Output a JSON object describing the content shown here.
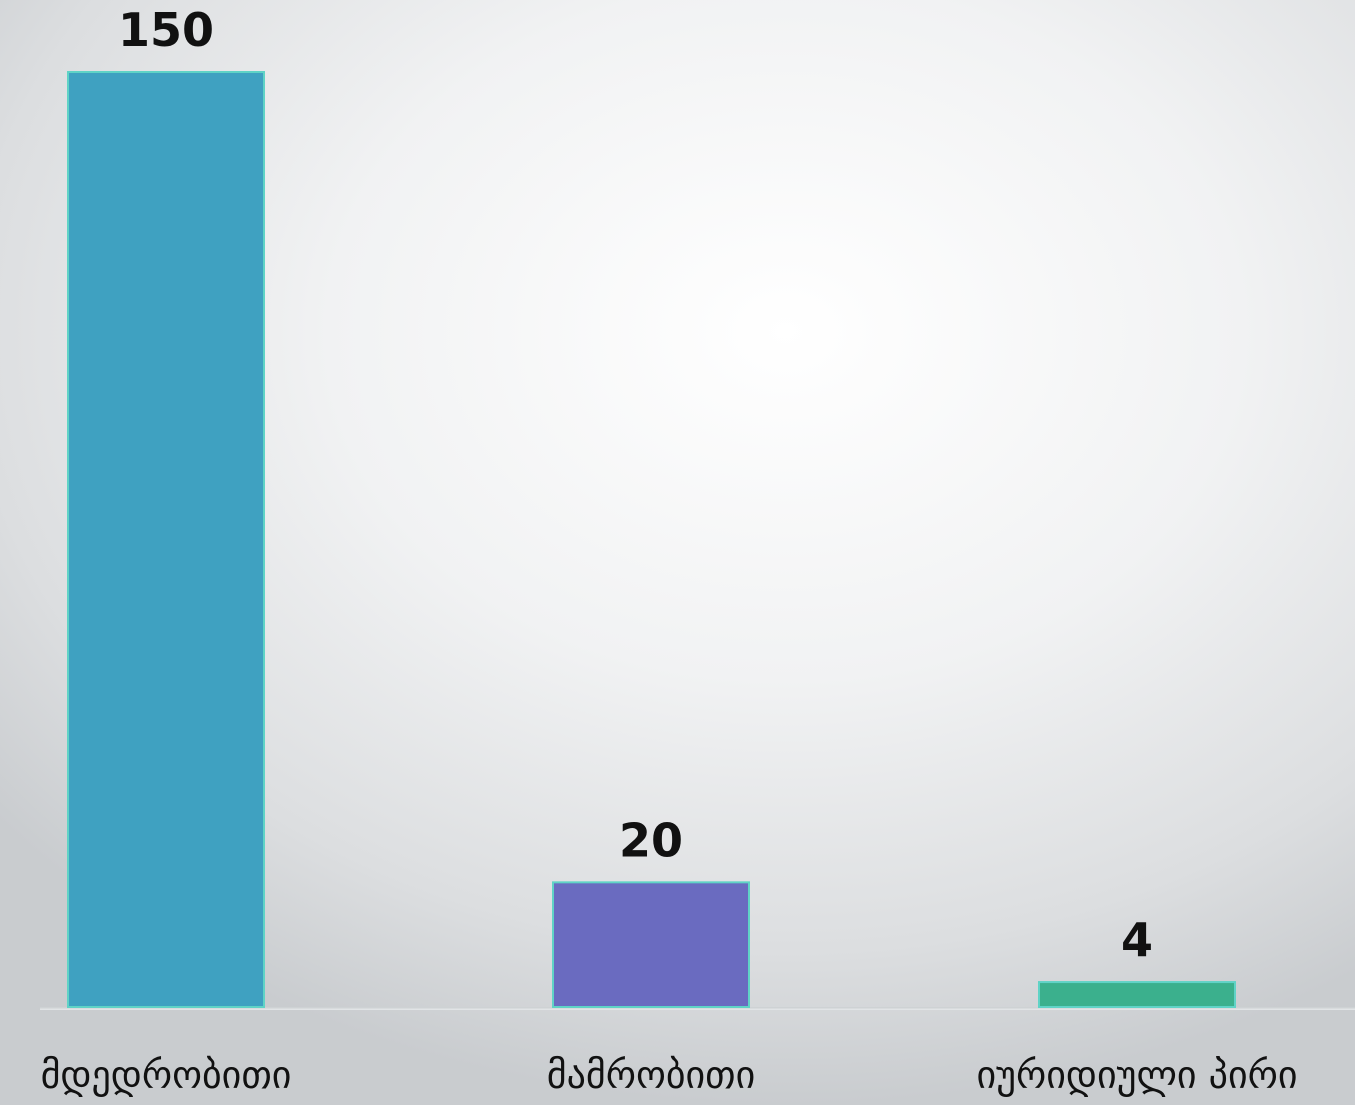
{
  "chart_data": {
    "type": "bar",
    "categories": [
      "მდედრობითი",
      "მამრობითი",
      "იურიდიული პირი"
    ],
    "values": [
      150,
      20,
      4
    ],
    "data_labels": [
      "150",
      "20",
      "4"
    ],
    "colors": [
      "#3fa1c1",
      "#6a6bc0",
      "#3bb08d"
    ],
    "edge_color": "#5fd3c6",
    "ylim": [
      0,
      150
    ],
    "grid": false,
    "legend": "none"
  }
}
